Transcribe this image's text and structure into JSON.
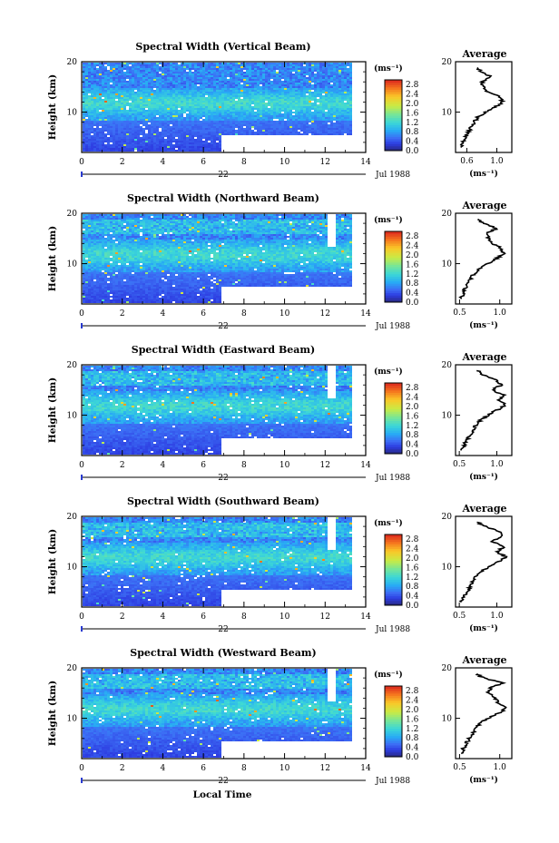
{
  "figure": {
    "xlabel": "Local Time",
    "ylabel": "Height (km)",
    "date_day": "22",
    "date_label": "Jul 1988",
    "colorbar_unit": "(ms⁻¹)",
    "avg_title": "Average",
    "avg_xlabel": "(ms⁻¹)"
  },
  "chart_data": [
    {
      "type": "heatmap",
      "title": "Spectral Width (Vertical Beam)",
      "xlabel": "Local Time",
      "ylabel": "Height (km)",
      "xlim": [
        0,
        14
      ],
      "ylim": [
        2,
        20
      ],
      "x_ticks": [
        "0",
        "2",
        "4",
        "6",
        "8",
        "10",
        "12",
        "14"
      ],
      "y_ticks": [
        "10",
        "20"
      ],
      "x_ticks_sub": [
        "22",
        "Jul 1988"
      ],
      "colorbar": {
        "label": "(ms⁻¹)",
        "ticks": [
          "0.0",
          "0.4",
          "0.8",
          "1.2",
          "1.6",
          "2.0",
          "2.4",
          "2.8"
        ]
      },
      "average_profile": {
        "title": "Average",
        "xlabel": "(ms⁻¹)",
        "ylabel": "Height (km)",
        "xlim": [
          0.45,
          1.2
        ],
        "x_ticks": [
          "0.6",
          "1.0"
        ],
        "y_ticks": [
          "10",
          "20"
        ],
        "height_km": [
          3,
          4,
          5,
          6,
          7,
          8,
          9,
          10,
          11,
          12,
          13,
          14,
          15,
          16,
          17,
          18,
          19
        ],
        "width_ms": [
          0.52,
          0.55,
          0.58,
          0.62,
          0.66,
          0.7,
          0.75,
          0.85,
          0.98,
          1.08,
          1.04,
          0.88,
          0.82,
          0.8,
          0.92,
          0.78,
          0.74
        ]
      }
    },
    {
      "type": "heatmap",
      "title": "Spectral Width (Northward Beam)",
      "xlabel": "Local Time",
      "ylabel": "Height (km)",
      "xlim": [
        0,
        14
      ],
      "ylim": [
        2,
        20
      ],
      "x_ticks": [
        "0",
        "2",
        "4",
        "6",
        "8",
        "10",
        "12",
        "14"
      ],
      "y_ticks": [
        "10",
        "20"
      ],
      "x_ticks_sub": [
        "22",
        "Jul 1988"
      ],
      "colorbar": {
        "label": "(ms⁻¹)",
        "ticks": [
          "0.0",
          "0.4",
          "0.8",
          "1.2",
          "1.6",
          "2.0",
          "2.4",
          "2.8"
        ]
      },
      "average_profile": {
        "title": "Average",
        "xlabel": "(ms⁻¹)",
        "ylabel": "Height (km)",
        "xlim": [
          0.45,
          1.15
        ],
        "x_ticks": [
          "0.5",
          "1.0"
        ],
        "y_ticks": [
          "10",
          "20"
        ],
        "height_km": [
          3,
          4,
          5,
          6,
          7,
          8,
          9,
          10,
          11,
          12,
          13,
          14,
          15,
          16,
          17,
          18,
          19
        ],
        "width_ms": [
          0.52,
          0.54,
          0.57,
          0.6,
          0.64,
          0.68,
          0.74,
          0.84,
          0.96,
          1.06,
          1.02,
          0.92,
          0.86,
          0.84,
          0.96,
          0.8,
          0.7
        ]
      }
    },
    {
      "type": "heatmap",
      "title": "Spectral Width (Eastward Beam)",
      "xlabel": "Local Time",
      "ylabel": "Height (km)",
      "xlim": [
        0,
        14
      ],
      "ylim": [
        2,
        20
      ],
      "x_ticks": [
        "0",
        "2",
        "4",
        "6",
        "8",
        "10",
        "12",
        "14"
      ],
      "y_ticks": [
        "10",
        "20"
      ],
      "x_ticks_sub": [
        "22",
        "Jul 1988"
      ],
      "colorbar": {
        "label": "(ms⁻¹)",
        "ticks": [
          "0.0",
          "0.4",
          "0.8",
          "1.2",
          "1.6",
          "2.0",
          "2.4",
          "2.8"
        ]
      },
      "average_profile": {
        "title": "Average",
        "xlabel": "(ms⁻¹)",
        "ylabel": "Height (km)",
        "xlim": [
          0.45,
          1.2
        ],
        "x_ticks": [
          "0.5",
          "1.0"
        ],
        "y_ticks": [
          "10",
          "20"
        ],
        "height_km": [
          3,
          4,
          5,
          6,
          7,
          8,
          9,
          10,
          11,
          12,
          13,
          14,
          15,
          16,
          17,
          18,
          19
        ],
        "width_ms": [
          0.53,
          0.56,
          0.6,
          0.64,
          0.68,
          0.72,
          0.78,
          0.88,
          1.0,
          1.12,
          1.02,
          1.1,
          0.94,
          1.06,
          1.0,
          0.82,
          0.74
        ]
      }
    },
    {
      "type": "heatmap",
      "title": "Spectral Width (Southward Beam)",
      "xlabel": "Local Time",
      "ylabel": "Height (km)",
      "xlim": [
        0,
        14
      ],
      "ylim": [
        2,
        20
      ],
      "x_ticks": [
        "0",
        "2",
        "4",
        "6",
        "8",
        "10",
        "12",
        "14"
      ],
      "y_ticks": [
        "10",
        "20"
      ],
      "x_ticks_sub": [
        "22",
        "Jul 1988"
      ],
      "colorbar": {
        "label": "(ms⁻¹)",
        "ticks": [
          "0.0",
          "0.4",
          "0.8",
          "1.2",
          "1.6",
          "2.0",
          "2.4",
          "2.8"
        ]
      },
      "average_profile": {
        "title": "Average",
        "xlabel": "(ms⁻¹)",
        "ylabel": "Height (km)",
        "xlim": [
          0.45,
          1.2
        ],
        "x_ticks": [
          "0.5",
          "1.0"
        ],
        "y_ticks": [
          "10",
          "20"
        ],
        "height_km": [
          3,
          4,
          5,
          6,
          7,
          8,
          9,
          10,
          11,
          12,
          13,
          14,
          15,
          16,
          17,
          18,
          19
        ],
        "width_ms": [
          0.53,
          0.56,
          0.6,
          0.64,
          0.68,
          0.72,
          0.78,
          0.9,
          1.02,
          1.12,
          1.0,
          1.1,
          0.92,
          1.08,
          1.02,
          0.84,
          0.72
        ]
      }
    },
    {
      "type": "heatmap",
      "title": "Spectral Width (Westward Beam)",
      "xlabel": "Local Time",
      "ylabel": "Height (km)",
      "xlim": [
        0,
        14
      ],
      "ylim": [
        2,
        20
      ],
      "x_ticks": [
        "0",
        "2",
        "4",
        "6",
        "8",
        "10",
        "12",
        "14"
      ],
      "y_ticks": [
        "10",
        "20"
      ],
      "x_ticks_sub": [
        "22",
        "Jul 1988"
      ],
      "colorbar": {
        "label": "(ms⁻¹)",
        "ticks": [
          "0.0",
          "0.4",
          "0.8",
          "1.2",
          "1.6",
          "2.0",
          "2.4",
          "2.8"
        ]
      },
      "average_profile": {
        "title": "Average",
        "xlabel": "(ms⁻¹)",
        "ylabel": "Height (km)",
        "xlim": [
          0.45,
          1.15
        ],
        "x_ticks": [
          "0.5",
          "1.0"
        ],
        "y_ticks": [
          "10",
          "20"
        ],
        "height_km": [
          3,
          4,
          5,
          6,
          7,
          8,
          9,
          10,
          11,
          12,
          13,
          14,
          15,
          16,
          17,
          18,
          19
        ],
        "width_ms": [
          0.52,
          0.55,
          0.58,
          0.62,
          0.66,
          0.7,
          0.76,
          0.86,
          0.98,
          1.08,
          0.98,
          0.94,
          0.86,
          0.88,
          1.04,
          0.8,
          0.7
        ]
      }
    }
  ]
}
